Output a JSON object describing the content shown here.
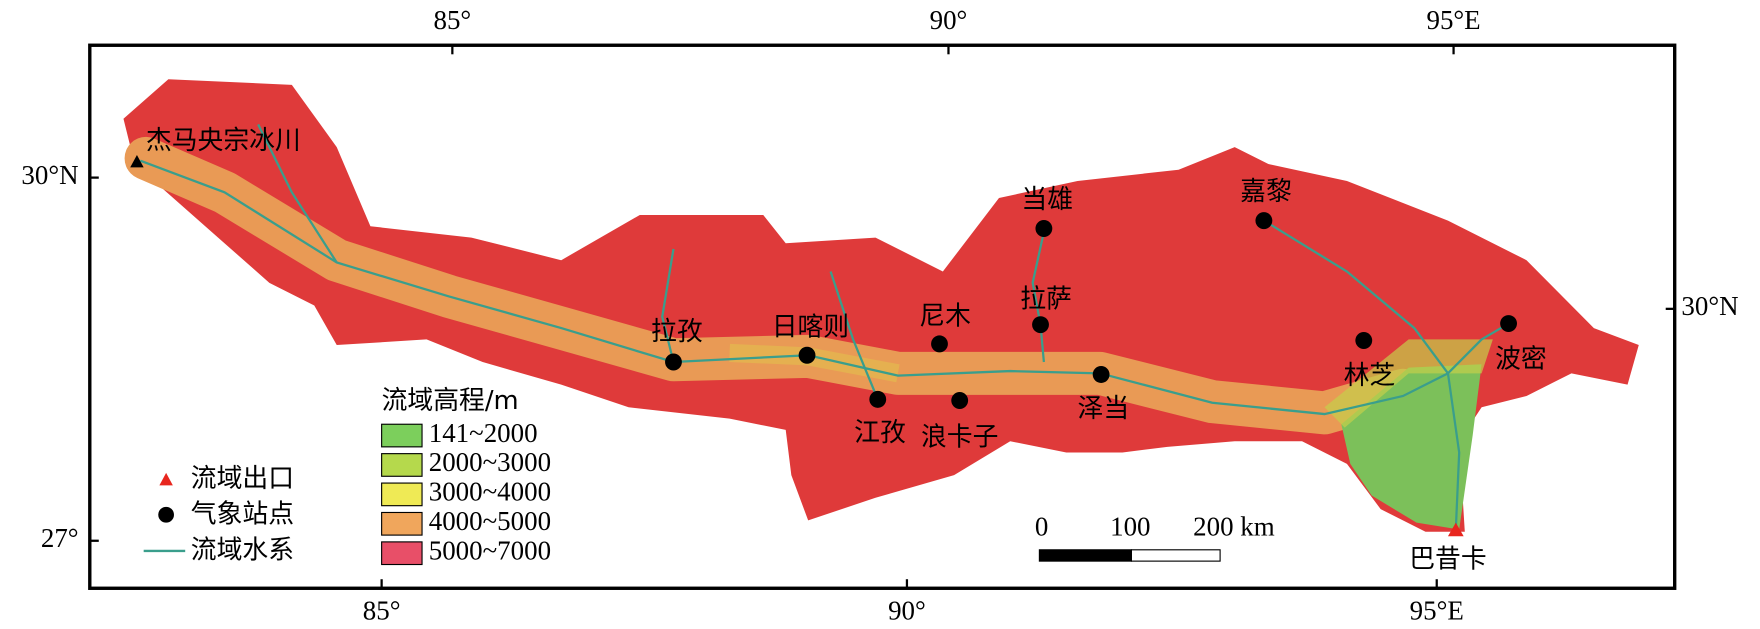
{
  "axes": {
    "top": [
      "85°",
      "90°",
      "95°E"
    ],
    "bottom": [
      "85°",
      "90°",
      "95°E"
    ],
    "left": [
      "30°N",
      "27°"
    ],
    "right": [
      "30°N"
    ]
  },
  "glacier": "杰马央宗冰川",
  "outlet": "巴昔卡",
  "stations": [
    "当雄",
    "嘉黎",
    "拉孜",
    "日喀则",
    "尼木",
    "拉萨",
    "江孜",
    "浪卡子",
    "泽当",
    "林芝",
    "波密"
  ],
  "legend": {
    "symbols": [
      "流域出口",
      "气象站点",
      "流域水系"
    ],
    "elevation_title": "流域高程/m",
    "elevation_classes": [
      {
        "label": "141~2000",
        "color": "#7ccf5c"
      },
      {
        "label": "2000~3000",
        "color": "#b5d94c"
      },
      {
        "label": "3000~4000",
        "color": "#efea55"
      },
      {
        "label": "4000~5000",
        "color": "#f0a65c"
      },
      {
        "label": "5000~7000",
        "color": "#e84f68"
      }
    ]
  },
  "scale_bar": {
    "labels": [
      "0",
      "100",
      "200 km"
    ]
  }
}
